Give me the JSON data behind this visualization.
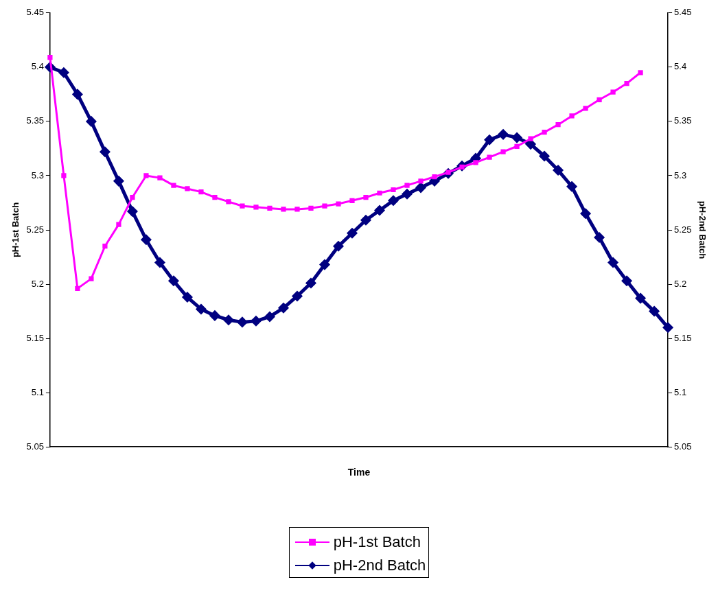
{
  "chart_data": {
    "type": "line",
    "xlabel": "Time",
    "ylabel": "pH-1st Batch",
    "y2label": "pH-2nd Batch",
    "categories": [
      null,
      null,
      null,
      null,
      null,
      null,
      null,
      null,
      null,
      null,
      null,
      null,
      null,
      null,
      null,
      null,
      null,
      null,
      null,
      null,
      null,
      null,
      null,
      null,
      null,
      null,
      null,
      null,
      null,
      null,
      null,
      null,
      null,
      null,
      null,
      null,
      null,
      null,
      null,
      null,
      null,
      null,
      null,
      null,
      null,
      null
    ],
    "series": [
      {
        "name": "pH-1st Batch",
        "color": "#ff00ff",
        "marker": "square",
        "values": [
          5.409,
          5.3,
          5.196,
          5.205,
          5.235,
          5.255,
          5.28,
          5.3,
          5.298,
          5.291,
          5.288,
          5.285,
          5.28,
          5.276,
          5.272,
          5.271,
          5.27,
          5.269,
          5.269,
          5.27,
          5.272,
          5.274,
          5.277,
          5.28,
          5.284,
          5.287,
          5.291,
          5.295,
          5.299,
          5.303,
          5.308,
          5.312,
          5.317,
          5.322,
          5.327,
          5.334,
          5.34,
          5.347,
          5.355,
          5.362,
          5.37,
          5.377,
          5.385,
          5.395,
          null,
          null
        ]
      },
      {
        "name": "pH-2nd Batch",
        "color": "#000080",
        "marker": "diamond",
        "axis": "y2",
        "values": [
          5.4,
          5.395,
          5.375,
          5.35,
          5.322,
          5.295,
          5.267,
          5.241,
          5.22,
          5.203,
          5.188,
          5.177,
          5.171,
          5.167,
          5.165,
          5.166,
          5.17,
          5.178,
          5.189,
          5.201,
          5.218,
          5.235,
          5.247,
          5.259,
          5.268,
          5.277,
          5.283,
          5.289,
          5.295,
          5.302,
          5.309,
          5.316,
          5.333,
          5.338,
          5.335,
          5.329,
          5.318,
          5.305,
          5.29,
          5.265,
          5.243,
          5.22,
          5.203,
          5.187,
          5.175,
          5.16
        ]
      }
    ],
    "ylim": [
      5.05,
      5.45
    ],
    "yticks": [
      5.05,
      5.1,
      5.15,
      5.2,
      5.25,
      5.3,
      5.35,
      5.4,
      5.45
    ],
    "y2lim": [
      5.05,
      5.45
    ],
    "y2ticks": [
      5.05,
      5.1,
      5.15,
      5.2,
      5.25,
      5.3,
      5.35,
      5.4,
      5.45
    ],
    "tick_labels": "y",
    "grid": false,
    "legend": "bottom"
  }
}
